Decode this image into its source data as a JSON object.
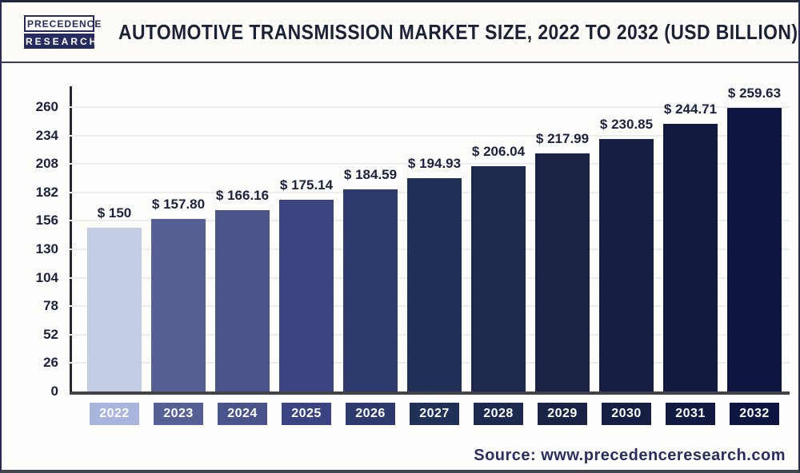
{
  "header": {
    "logo": {
      "line1": "PRECEDENCE",
      "line2": "RESEARCH"
    },
    "title": "AUTOMOTIVE TRANSMISSION MARKET SIZE, 2022 TO 2032 (USD BILLION)"
  },
  "chart_data": {
    "type": "bar",
    "title": "AUTOMOTIVE TRANSMISSION MARKET SIZE, 2022 TO 2032 (USD BILLION)",
    "categories": [
      "2022",
      "2023",
      "2024",
      "2025",
      "2026",
      "2027",
      "2028",
      "2029",
      "2030",
      "2031",
      "2032"
    ],
    "values": [
      150,
      157.8,
      166.16,
      175.14,
      184.59,
      194.93,
      206.04,
      217.99,
      230.85,
      244.71,
      259.63
    ],
    "value_labels": [
      "$ 150",
      "$ 157.80",
      "$ 166.16",
      "$ 175.14",
      "$ 184.59",
      "$ 194.93",
      "$ 206.04",
      "$ 217.99",
      "$ 230.85",
      "$ 244.71",
      "$ 259.63"
    ],
    "bar_colors": [
      "#c4cce6",
      "#566094",
      "#49548b",
      "#3a4480",
      "#2d3a6e",
      "#1f3156",
      "#1c2a50",
      "#1a2345",
      "#161e44",
      "#121a42",
      "#0e1540"
    ],
    "year_box_colors": [
      "#a9b5dc",
      "#566094",
      "#49548b",
      "#3a4480",
      "#2d3a6e",
      "#1f3156",
      "#1c2a50",
      "#1a2345",
      "#161e44",
      "#121a42",
      "#0e1540"
    ],
    "y_ticks": [
      0,
      26,
      52,
      78,
      104,
      130,
      156,
      182,
      208,
      234,
      260
    ],
    "ylim": [
      0,
      260
    ],
    "xlabel": "",
    "ylabel": "",
    "grid": true,
    "legend": false,
    "unit": "USD Billion"
  },
  "footer": {
    "source": "Source: www.precedenceresearch.com"
  },
  "colors": {
    "title_text": "#1b2136",
    "label_text": "#1b2240",
    "axis_line": "#26272e",
    "baseline": "#414349",
    "gridline": "#ededed",
    "source_text": "#292f63",
    "year_text": "#ffffff"
  }
}
